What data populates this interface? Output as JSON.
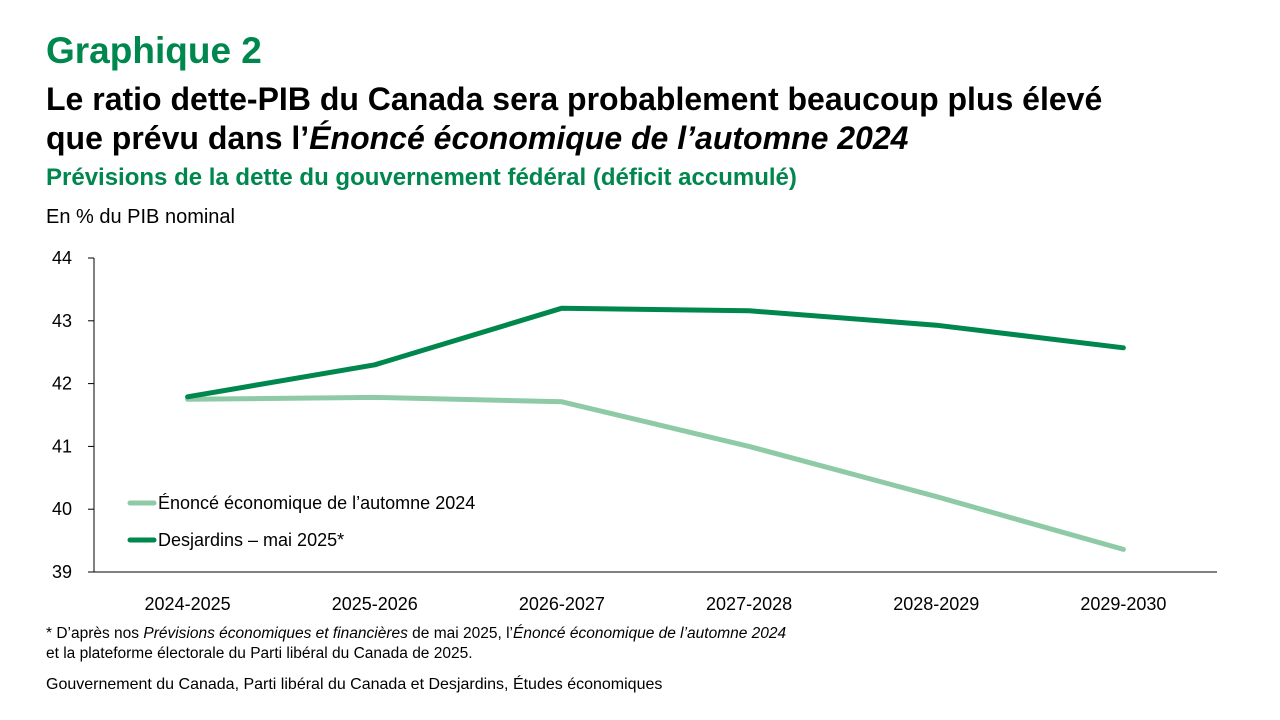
{
  "header": {
    "kicker": "Graphique 2",
    "headline_line1": "Le ratio dette-PIB du Canada sera probablement beaucoup plus élevé",
    "headline_line2_plain": "que prévu dans l’",
    "headline_line2_italic": "Énoncé économique de l’automne 2024",
    "subtitle": "Prévisions de la dette du gouvernement fédéral (déficit accumulé)"
  },
  "chart_data": {
    "type": "line",
    "title": "Prévisions de la dette du gouvernement fédéral (déficit accumulé)",
    "ylabel": "En % du PIB nominal",
    "xlabel": "",
    "categories": [
      "2024-2025",
      "2025-2026",
      "2026-2027",
      "2027-2028",
      "2028-2029",
      "2029-2030"
    ],
    "ylim": [
      39,
      44
    ],
    "yticks": [
      39,
      40,
      41,
      42,
      43,
      44
    ],
    "grid": false,
    "legend_position": "bottom-left",
    "series": [
      {
        "name": "Énoncé économique de l’automne 2024",
        "color": "#8fcaa6",
        "values": [
          41.75,
          41.78,
          41.71,
          41.0,
          40.2,
          39.36
        ]
      },
      {
        "name": "Desjardins – mai 2025*",
        "color": "#00874e",
        "values": [
          41.79,
          42.3,
          43.2,
          43.16,
          42.93,
          42.57
        ]
      }
    ]
  },
  "footnote": {
    "line1_a": "* D’après nos ",
    "line1_b": "Prévisions économiques et financières",
    "line1_c": " de mai 2025, l’",
    "line1_d": "Énoncé économique de l’automne 2024",
    "line2": "et la plateforme électorale du Parti libéral du Canada de 2025."
  },
  "source": "Gouvernement du Canada, Parti libéral du Canada et Desjardins, Études économiques"
}
